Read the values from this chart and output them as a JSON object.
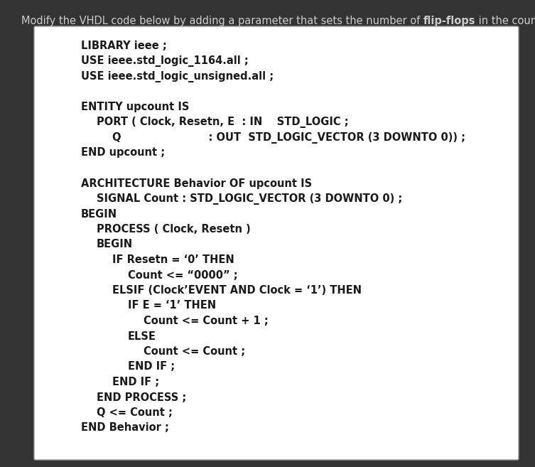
{
  "bg_color": "#333333",
  "box_color": "#ffffff",
  "box_edge_color": "#999999",
  "header_text_parts": [
    {
      "text": "Modify the VHDL code below by adding a parameter that sets the number of ",
      "bold": false
    },
    {
      "text": "flip-flops",
      "bold": true
    },
    {
      "text": " in the counter.",
      "bold": false
    }
  ],
  "header_color": "#cccccc",
  "header_fontsize": 10.5,
  "code_fontsize": 10.5,
  "code_color": "#1a1a1a",
  "indent_unit_pt": 22,
  "code_lines": [
    {
      "text": "LIBRARY ieee ;",
      "indent": 1
    },
    {
      "text": "USE ieee.std_logic_1164.all ;",
      "indent": 1
    },
    {
      "text": "USE ieee.std_logic_unsigned.all ;",
      "indent": 1
    },
    {
      "text": "",
      "indent": 0
    },
    {
      "text": "ENTITY upcount IS",
      "indent": 1
    },
    {
      "text": "PORT ( Clock, Resetn, E  : IN    STD_LOGIC ;",
      "indent": 2
    },
    {
      "text": "Q                        : OUT  STD_LOGIC_VECTOR (3 DOWNTO 0)) ;",
      "indent": 3
    },
    {
      "text": "END upcount ;",
      "indent": 1
    },
    {
      "text": "",
      "indent": 0
    },
    {
      "text": "ARCHITECTURE Behavior OF upcount IS",
      "indent": 1
    },
    {
      "text": "SIGNAL Count : STD_LOGIC_VECTOR (3 DOWNTO 0) ;",
      "indent": 2
    },
    {
      "text": "BEGIN",
      "indent": 1
    },
    {
      "text": "PROCESS ( Clock, Resetn )",
      "indent": 2
    },
    {
      "text": "BEGIN",
      "indent": 2
    },
    {
      "text": "IF Resetn = ‘0’ THEN",
      "indent": 3
    },
    {
      "text": "Count <= “0000” ;",
      "indent": 4
    },
    {
      "text": "ELSIF (Clock’EVENT AND Clock = ‘1’) THEN",
      "indent": 3
    },
    {
      "text": "IF E = ‘1’ THEN",
      "indent": 4
    },
    {
      "text": "Count <= Count + 1 ;",
      "indent": 5
    },
    {
      "text": "ELSE",
      "indent": 4
    },
    {
      "text": "Count <= Count ;",
      "indent": 5
    },
    {
      "text": "END IF ;",
      "indent": 4
    },
    {
      "text": "END IF ;",
      "indent": 3
    },
    {
      "text": "END PROCESS ;",
      "indent": 2
    },
    {
      "text": "Q <= Count ;",
      "indent": 2
    },
    {
      "text": "END Behavior ;",
      "indent": 1
    }
  ]
}
